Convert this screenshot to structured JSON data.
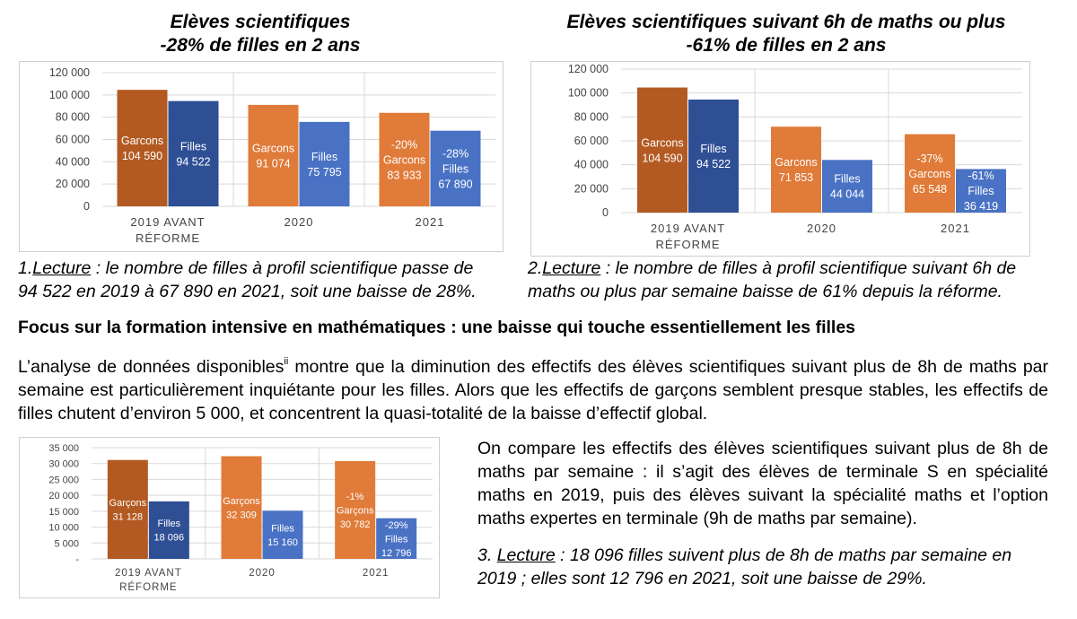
{
  "chart_data": [
    {
      "type": "bar",
      "title": [
        "Elèves scientifiques",
        "-28% de filles en 2 ans"
      ],
      "categories": [
        "2019 AVANT RÉFORME",
        "2020",
        "2021"
      ],
      "ylim": [
        0,
        120000
      ],
      "yticks": [
        "0",
        "20 000",
        "40 000",
        "60 000",
        "80 000",
        "100 000",
        "120 000"
      ],
      "grid": true,
      "series": [
        {
          "name": "Garcons",
          "values": [
            104590,
            91074,
            83933
          ],
          "value_labels": [
            "104 590",
            "91 074",
            "83 933"
          ],
          "pct_labels": [
            "",
            "",
            "-20%"
          ]
        },
        {
          "name": "Filles",
          "values": [
            94522,
            75795,
            67890
          ],
          "value_labels": [
            "94 522",
            "75 795",
            "67 890"
          ],
          "pct_labels": [
            "",
            "",
            "-28%"
          ]
        }
      ]
    },
    {
      "type": "bar",
      "title": [
        "Elèves scientifiques suivant  6h de maths ou plus",
        "-61% de filles en 2 ans"
      ],
      "categories": [
        "2019 AVANT RÉFORME",
        "2020",
        "2021"
      ],
      "ylim": [
        0,
        120000
      ],
      "yticks": [
        "0",
        "20 000",
        "40 000",
        "60 000",
        "80 000",
        "100 000",
        "120 000"
      ],
      "grid": true,
      "series": [
        {
          "name": "Garcons",
          "values": [
            104590,
            71853,
            65548
          ],
          "value_labels": [
            "104 590",
            "71 853",
            "65 548"
          ],
          "pct_labels": [
            "",
            "",
            "-37%"
          ]
        },
        {
          "name": "Filles",
          "values": [
            94522,
            44044,
            36419
          ],
          "value_labels": [
            "94 522",
            "44 044",
            "36 419"
          ],
          "pct_labels": [
            "",
            "",
            "-61%"
          ]
        }
      ]
    },
    {
      "type": "bar",
      "title": [],
      "categories": [
        "2019 AVANT RÉFORME",
        "2020",
        "2021"
      ],
      "ylim": [
        0,
        35000
      ],
      "yticks": [
        "-",
        "5 000",
        "10 000",
        "15 000",
        "20 000",
        "25 000",
        "30 000",
        "35 000"
      ],
      "grid": true,
      "series": [
        {
          "name": "Garçons",
          "values": [
            31128,
            32309,
            30782
          ],
          "value_labels": [
            "31 128",
            "32 309",
            "30 782"
          ],
          "pct_labels": [
            "",
            "",
            "-1%"
          ]
        },
        {
          "name": "Filles",
          "values": [
            18096,
            15160,
            12796
          ],
          "value_labels": [
            "18 096",
            "15 160",
            "12 796"
          ],
          "pct_labels": [
            "",
            "",
            "-29%"
          ]
        }
      ]
    }
  ],
  "colors": {
    "boys": [
      "#b35a22",
      "#e07b39",
      "#e07b39"
    ],
    "girls": [
      "#2f4f95",
      "#4a72c4",
      "#4a72c4"
    ],
    "grid": "#d9d9d9"
  },
  "text": {
    "caption1_num": "1.",
    "caption1_lec": "Lecture",
    "caption1_line1": " : le nombre de filles à profil scientifique passe de",
    "caption1_line2": "94 522 en 2019 à 67 890 en 2021, soit une baisse de 28%.",
    "caption2_num": "2.",
    "caption2_lec": "Lecture",
    "caption2_line1": " : le nombre de filles à profil scientifique suivant 6h de",
    "caption2_line2": "maths ou plus par semaine baisse de 61% depuis la réforme.",
    "heading": "Focus sur la formation intensive en mathématiques : une baisse qui touche essentiellement les filles",
    "para1_a": "L’analyse de données disponibles",
    "para1_sup": "ii",
    "para1_b": " montre que la diminution des effectifs des élèves scientifiques suivant plus de 8h de maths par semaine est particulièrement inquiétante pour les filles. Alors que les effectifs de garçons semblent presque stables, les effectifs de filles chutent d’environ 5 000, et concentrent la quasi-totalité de la baisse d’effectif global.",
    "para2": "On compare les effectifs des élèves scientifiques suivant plus de 8h de maths par semaine : il s’agit des élèves de terminale S en spécialité maths en 2019, puis des élèves suivant la spécialité maths et l’option maths expertes en terminale (9h de maths par semaine).",
    "caption3_num": "3. ",
    "caption3_lec": "Lecture",
    "caption3_line1": " : 18 096 filles suivent plus de 8h de maths par semaine en",
    "caption3_line2": "2019 ; elles sont 12 796 en 2021, soit une baisse de 29%."
  }
}
